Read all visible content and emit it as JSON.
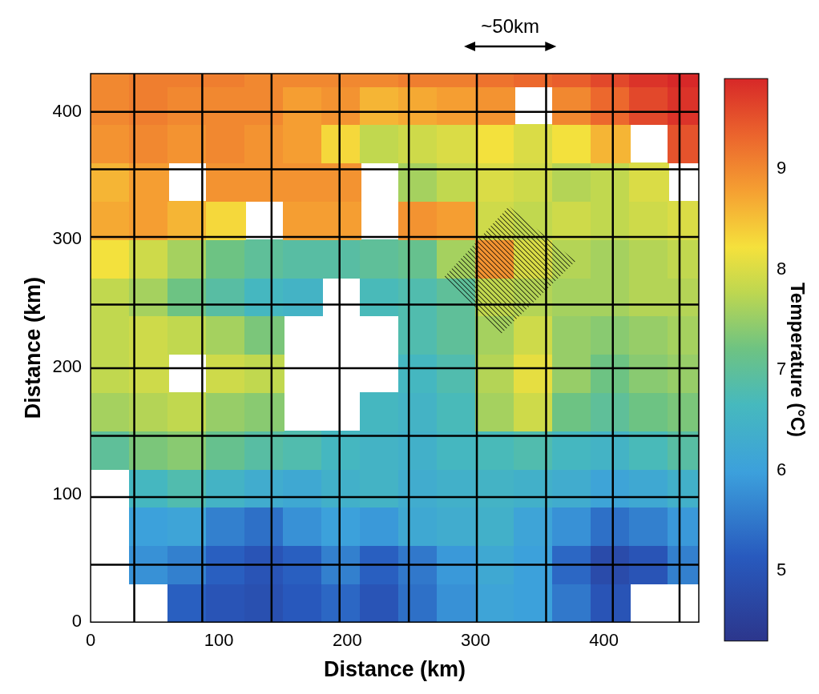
{
  "chart_data": {
    "type": "heatmap",
    "x_label": "Distance (km)",
    "y_label": "Distance (km)",
    "xlim": [
      0,
      474
    ],
    "ylim": [
      0,
      430
    ],
    "xticks": [
      0,
      100,
      200,
      300,
      400
    ],
    "yticks": [
      0,
      100,
      200,
      300,
      400
    ],
    "grid": false,
    "x_edges": [
      0,
      30,
      60,
      90,
      120,
      150,
      180,
      210,
      240,
      270,
      300,
      330,
      360,
      390,
      420,
      450,
      480
    ],
    "y_edges": [
      0,
      30,
      60,
      90,
      120,
      150,
      180,
      210,
      240,
      270,
      300,
      330,
      360,
      390,
      420,
      450
    ],
    "cells": [
      [
        null,
        null,
        5.2,
        5.0,
        4.9,
        5.1,
        5.3,
        5.0,
        5.4,
        5.8,
        6.1,
        6.0,
        5.5,
        5.0,
        null,
        null
      ],
      [
        null,
        5.8,
        5.6,
        5.2,
        5.0,
        5.2,
        5.6,
        5.2,
        5.5,
        5.9,
        6.2,
        6.0,
        5.3,
        4.8,
        5.0,
        5.6
      ],
      [
        null,
        6.0,
        6.1,
        5.6,
        5.4,
        5.8,
        6.0,
        5.9,
        6.2,
        6.3,
        6.4,
        6.1,
        5.8,
        5.4,
        5.6,
        5.9
      ],
      [
        null,
        6.6,
        6.8,
        6.5,
        6.3,
        6.2,
        6.4,
        6.5,
        6.3,
        6.4,
        6.5,
        6.4,
        6.3,
        6.1,
        6.2,
        6.4
      ],
      [
        7.0,
        7.3,
        7.4,
        7.1,
        6.9,
        6.8,
        6.6,
        6.5,
        6.4,
        6.6,
        6.7,
        6.8,
        6.6,
        6.5,
        6.7,
        6.9
      ],
      [
        7.6,
        7.7,
        7.8,
        7.5,
        7.4,
        null,
        null,
        6.6,
        6.5,
        6.7,
        7.6,
        7.9,
        7.2,
        7.0,
        7.2,
        7.3
      ],
      [
        7.8,
        7.9,
        null,
        7.9,
        7.8,
        null,
        null,
        null,
        6.6,
        6.8,
        7.7,
        8.1,
        7.5,
        7.2,
        7.4,
        7.5
      ],
      [
        7.8,
        7.9,
        7.8,
        7.6,
        7.3,
        null,
        null,
        null,
        6.8,
        7.0,
        7.6,
        7.9,
        7.5,
        7.4,
        7.5,
        7.6
      ],
      [
        7.8,
        7.6,
        7.2,
        6.9,
        6.6,
        6.5,
        null,
        6.7,
        6.8,
        7.0,
        7.8,
        7.7,
        7.6,
        7.6,
        7.7,
        7.7
      ],
      [
        8.2,
        7.9,
        7.6,
        7.2,
        7.0,
        6.9,
        6.9,
        7.0,
        7.1,
        7.6,
        8.9,
        8.0,
        7.7,
        7.6,
        7.7,
        7.8
      ],
      [
        8.7,
        8.8,
        8.6,
        8.3,
        null,
        8.8,
        8.8,
        null,
        8.9,
        8.8,
        7.9,
        7.8,
        7.9,
        7.8,
        7.9,
        8.0
      ],
      [
        8.6,
        8.8,
        null,
        8.9,
        8.9,
        8.9,
        8.9,
        null,
        7.6,
        7.8,
        8.0,
        7.9,
        7.7,
        7.8,
        8.0,
        null
      ],
      [
        8.9,
        9.0,
        8.9,
        9.0,
        8.9,
        8.8,
        8.3,
        7.8,
        7.9,
        8.0,
        8.2,
        8.0,
        8.2,
        8.6,
        null,
        9.5
      ],
      [
        9.0,
        9.1,
        9.0,
        9.0,
        9.0,
        8.8,
        8.9,
        8.6,
        8.7,
        8.8,
        8.9,
        null,
        9.0,
        9.3,
        9.6,
        9.8
      ],
      [
        9.0,
        9.1,
        9.1,
        9.1,
        9.0,
        9.0,
        9.0,
        9.0,
        9.1,
        9.1,
        9.2,
        9.3,
        9.4,
        9.6,
        9.8,
        9.9
      ]
    ],
    "overlay_lines": {
      "x": [
        34,
        87,
        141,
        194,
        248,
        301,
        355,
        407,
        459
      ],
      "y": [
        45,
        98,
        146,
        199,
        249,
        302,
        355,
        400
      ]
    },
    "hatched_region": [
      [
        326,
        326
      ],
      [
        378,
        283
      ],
      [
        320,
        226
      ],
      [
        275,
        270
      ]
    ],
    "annotations": [
      {
        "text": "~50km",
        "x": [
          291,
          363
        ]
      }
    ],
    "colorbar": {
      "label": "Temperature (°C)",
      "range": [
        4.3,
        9.9
      ],
      "ticks": [
        5,
        6,
        7,
        8,
        9
      ]
    }
  }
}
